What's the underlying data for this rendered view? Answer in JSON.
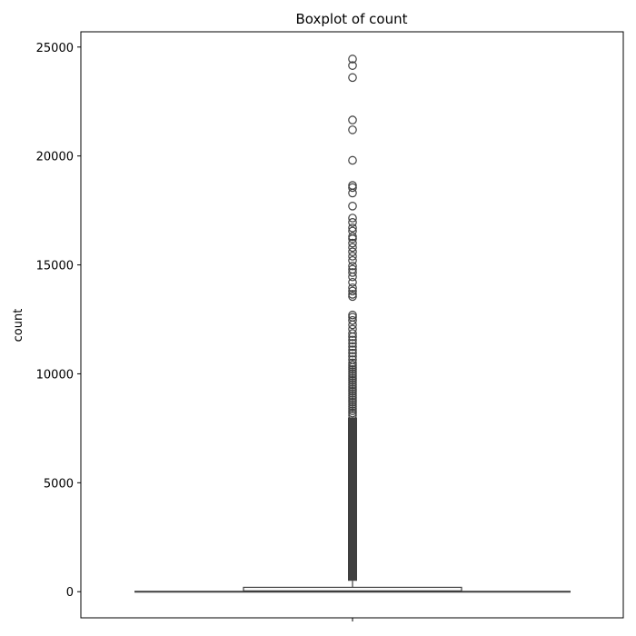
{
  "colors": {
    "box_fill": "#ffffff",
    "box_stroke": "#3f3f3f",
    "axis": "#000000",
    "outlier": "#3f3f3f"
  },
  "chart_data": {
    "type": "box",
    "title": "Boxplot of count",
    "xlabel": "",
    "ylabel": "count",
    "ylim": [
      -1200,
      25700
    ],
    "yticks": [
      0,
      5000,
      10000,
      15000,
      20000,
      25000
    ],
    "ytick_labels": [
      "0",
      "5000",
      "10000",
      "15000",
      "20000",
      "25000"
    ],
    "grid": false,
    "box": {
      "whislo": 0,
      "q1": 0,
      "median": 30,
      "q3": 200,
      "whishi": 500
    },
    "outliers_dense_range": [
      500,
      8000
    ],
    "outliers": [
      8100,
      8200,
      8300,
      8400,
      8500,
      8600,
      8700,
      8800,
      8900,
      9000,
      9100,
      9200,
      9300,
      9400,
      9500,
      9600,
      9700,
      9800,
      9900,
      10000,
      10100,
      10200,
      10300,
      10400,
      10500,
      10650,
      10800,
      10950,
      11100,
      11250,
      11400,
      11550,
      11700,
      11850,
      12050,
      12250,
      12450,
      12600,
      12700,
      13550,
      13650,
      13800,
      13950,
      14200,
      14450,
      14650,
      14800,
      14950,
      15200,
      15400,
      15600,
      15800,
      16000,
      16200,
      16300,
      16550,
      16700,
      16950,
      17150,
      17700,
      18300,
      18550,
      18650,
      19800,
      21200,
      21650,
      23600,
      24150,
      24450
    ]
  }
}
